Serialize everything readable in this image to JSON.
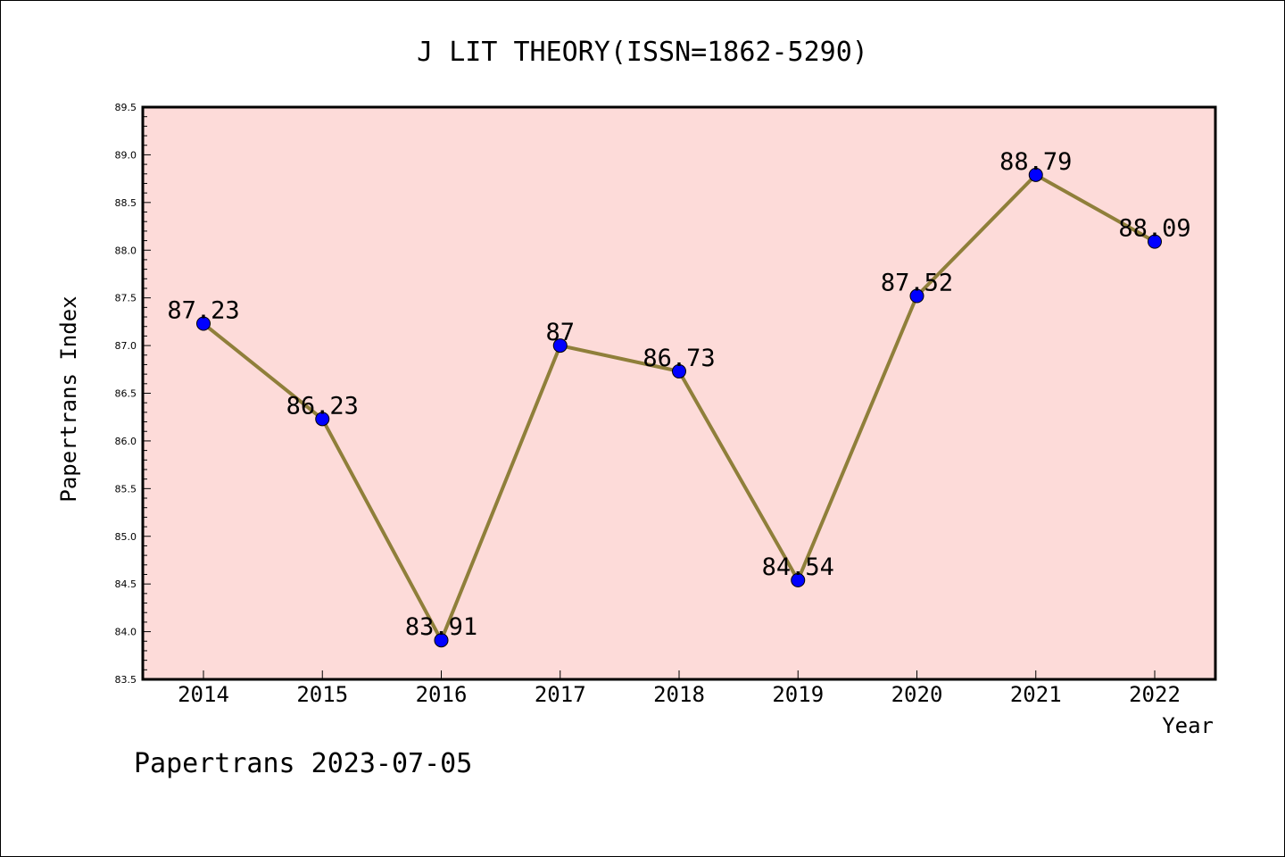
{
  "chart_data": {
    "type": "line",
    "title": "J LIT THEORY(ISSN=1862-5290)",
    "xlabel": "Year",
    "ylabel": "Papertrans Index",
    "categories": [
      "2014",
      "2015",
      "2016",
      "2017",
      "2018",
      "2019",
      "2020",
      "2021",
      "2022"
    ],
    "series": [
      {
        "values": [
          87.23,
          86.23,
          83.91,
          87,
          86.73,
          84.54,
          87.52,
          88.79,
          88.09
        ],
        "data_labels": [
          "87.23",
          "86.23",
          "83.91",
          "87",
          "86.73",
          "84.54",
          "87.52",
          "88.79",
          "88.09"
        ]
      }
    ],
    "ylim": [
      83.5,
      89.5
    ],
    "yticks": [
      "83.5",
      "84.0",
      "84.5",
      "85.0",
      "85.5",
      "86.0",
      "86.5",
      "87.0",
      "87.5",
      "88.0",
      "88.5",
      "89.0",
      "89.5"
    ],
    "grid": false,
    "colors": {
      "plot_bg": "#fddbd9",
      "line": "#8f7f3a",
      "marker": "#0000ff",
      "axis": "#000000"
    }
  },
  "footer": "Papertrans 2023-07-05"
}
